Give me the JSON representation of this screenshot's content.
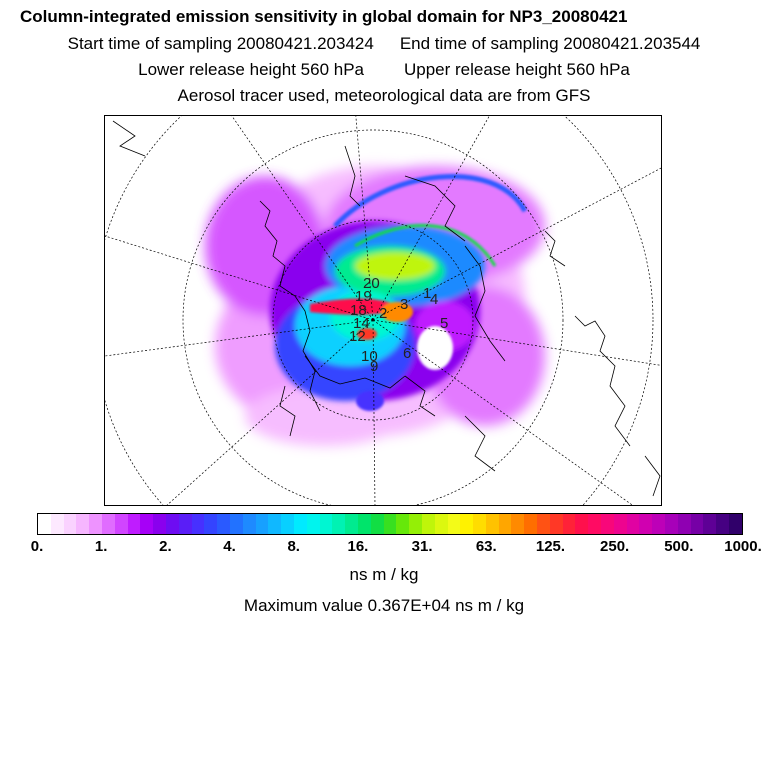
{
  "header": {
    "title": "Column-integrated emission sensitivity in global domain for NP3_20080421",
    "start_time": "Start time of sampling 20080421.203424",
    "end_time": "End time of sampling 20080421.203544",
    "lower_height": "Lower release height  560 hPa",
    "upper_height": "Upper release height  560 hPa",
    "tracer_note": "Aerosol tracer used, meteorological data are from GFS"
  },
  "colorbar": {
    "tick_labels": [
      "0.",
      "1.",
      "2.",
      "4.",
      "8.",
      "16.",
      "31.",
      "63.",
      "125.",
      "250.",
      "500.",
      "1000."
    ],
    "colors": [
      "#ffffff",
      "#fde9ff",
      "#fad2ff",
      "#f6b6ff",
      "#ee93ff",
      "#e06cff",
      "#d145ff",
      "#bf1cff",
      "#a600f7",
      "#8a00ee",
      "#6e0cf2",
      "#5a1ef7",
      "#4730ff",
      "#3444ff",
      "#2a5aff",
      "#2272ff",
      "#1e8aff",
      "#17a0ff",
      "#10b8ff",
      "#08d0ff",
      "#00eaff",
      "#00f4ee",
      "#00f6d2",
      "#00f2b3",
      "#00eb90",
      "#00e46b",
      "#12de44",
      "#38e020",
      "#66e80a",
      "#94ef06",
      "#bff50a",
      "#dcf80f",
      "#f3fb18",
      "#fff200",
      "#ffdd00",
      "#ffc200",
      "#ffa600",
      "#ff8a00",
      "#ff6e00",
      "#ff5214",
      "#ff3826",
      "#ff2238",
      "#ff104c",
      "#ff0b63",
      "#f8077a",
      "#ee048f",
      "#e002a2",
      "#d000b0",
      "#bd00b8",
      "#a700b9",
      "#8f00b2",
      "#7600a6",
      "#5e0096",
      "#460082",
      "#30006a"
    ],
    "unit": "ns m / kg"
  },
  "footer": {
    "max_value": "Maximum value  0.367E+04 ns m / kg"
  },
  "map": {
    "point_labels": [
      "1",
      "2",
      "3",
      "4",
      "5",
      "6",
      "9",
      "10",
      "12",
      "14",
      "18",
      "19",
      "20"
    ]
  }
}
